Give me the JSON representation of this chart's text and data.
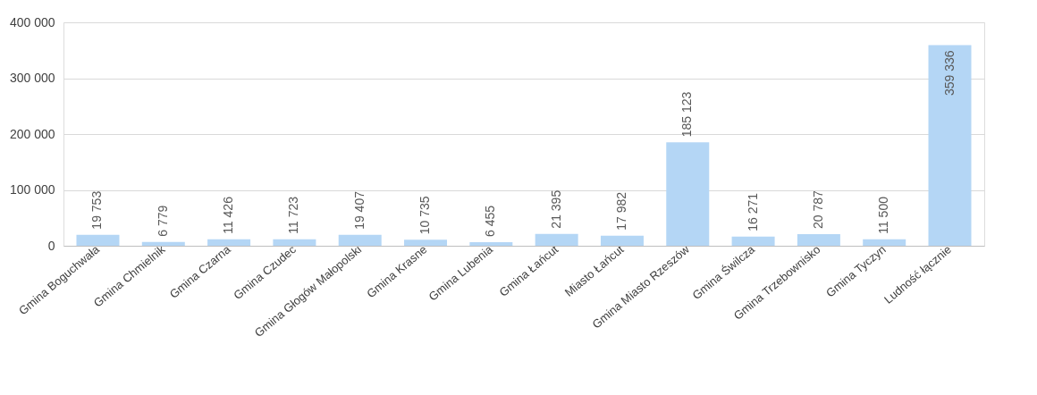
{
  "chart_data": {
    "type": "bar",
    "categories": [
      "Gmina Boguchwała",
      "Gmina Chmielnik",
      "Gmina Czarna",
      "Gmina Czudec",
      "Gmina Głogów Małopolski",
      "Gmina Krasne",
      "Gmina Lubenia",
      "Gmina Łańcut",
      "Miasto Łańcut",
      "Gmina Miasto Rzeszów",
      "Gmina Świlcza",
      "Gmina Trzebownisko",
      "Gmina Tyczyn",
      "Ludność łącznie"
    ],
    "values": [
      19753,
      6779,
      11426,
      11723,
      19407,
      10735,
      6455,
      21395,
      17982,
      185123,
      16271,
      20787,
      11500,
      359336
    ],
    "value_labels": [
      "19 753",
      "6 779",
      "11 426",
      "11 723",
      "19 407",
      "10 735",
      "6 455",
      "21 395",
      "17 982",
      "185 123",
      "16 271",
      "20 787",
      "11 500",
      "359 336"
    ],
    "color": "#b4d6f5",
    "ylim": [
      0,
      400000
    ],
    "yticks": [
      {
        "value": 0,
        "label": "0"
      },
      {
        "value": 100000,
        "label": "100 000"
      },
      {
        "value": 200000,
        "label": "200 000"
      },
      {
        "value": 300000,
        "label": "300 000"
      },
      {
        "value": 400000,
        "label": "400 000"
      }
    ],
    "grid": "y"
  }
}
